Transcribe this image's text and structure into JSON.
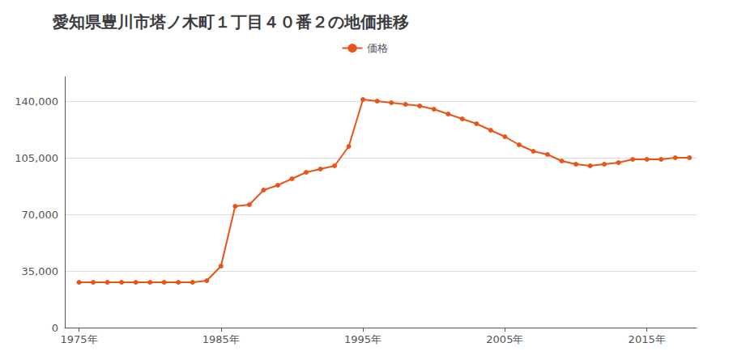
{
  "chart_data": {
    "type": "line",
    "title": "愛知県豊川市塔ノ木町１丁目４０番２の地価推移",
    "x": [
      1975,
      1976,
      1977,
      1978,
      1979,
      1980,
      1981,
      1982,
      1983,
      1984,
      1985,
      1986,
      1987,
      1988,
      1989,
      1990,
      1991,
      1992,
      1993,
      1994,
      1995,
      1996,
      1997,
      1998,
      1999,
      2000,
      2001,
      2002,
      2003,
      2004,
      2005,
      2006,
      2007,
      2008,
      2009,
      2010,
      2011,
      2012,
      2013,
      2014,
      2015,
      2016,
      2017,
      2018
    ],
    "series": [
      {
        "name": "価格",
        "color": "#e8541a",
        "marker": "circle",
        "values": [
          28000,
          28000,
          28000,
          28000,
          28000,
          28000,
          28000,
          28000,
          28000,
          29000,
          38000,
          75000,
          76000,
          85000,
          88000,
          92000,
          96000,
          98000,
          100000,
          112000,
          141000,
          140000,
          139000,
          138000,
          137000,
          135000,
          132000,
          129000,
          126000,
          122000,
          118000,
          113000,
          109000,
          107000,
          103000,
          101000,
          100000,
          101000,
          102000,
          104000,
          104000,
          104000,
          105000,
          105000
        ]
      }
    ],
    "xlim": [
      1974,
      2018.5
    ],
    "xticks": [
      {
        "value": 1975,
        "label": "1975年"
      },
      {
        "value": 1985,
        "label": "1985年"
      },
      {
        "value": 1995,
        "label": "1995年"
      },
      {
        "value": 2005,
        "label": "2005年"
      },
      {
        "value": 2015,
        "label": "2015年"
      }
    ],
    "ylim": [
      0,
      155000
    ],
    "yticks": [
      0,
      {
        "value": 35000,
        "label": "35,000"
      },
      {
        "value": 70000,
        "label": "70,000"
      },
      {
        "value": 105000,
        "label": "105,000"
      },
      {
        "value": 140000,
        "label": "140,000"
      }
    ],
    "grid": true,
    "legend": "top"
  }
}
